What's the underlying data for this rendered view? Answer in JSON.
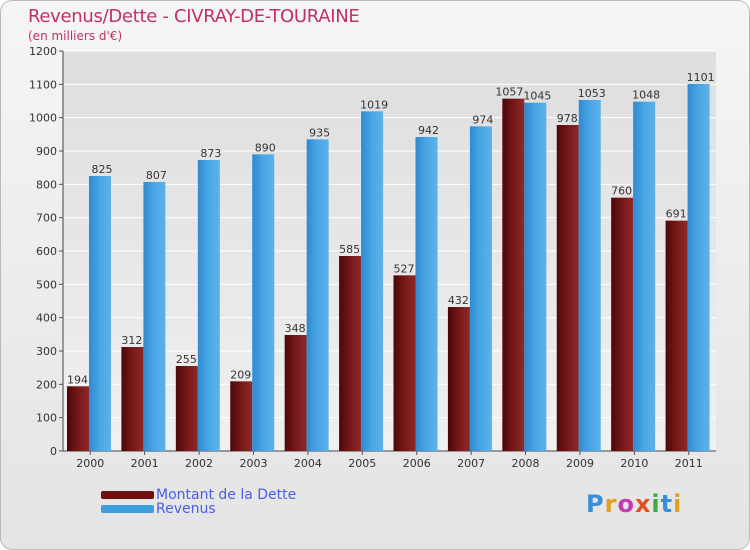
{
  "header": {
    "title": "Revenus/Dette - CIVRAY-DE-TOURAINE",
    "subtitle": "(en milliers d'€)"
  },
  "colors": {
    "title": "#c0306a",
    "dette": "#6e1010",
    "revenus": "#3f9ee0",
    "legend_text": "#4b5ee8"
  },
  "chart_data": {
    "type": "bar",
    "categories": [
      "2000",
      "2001",
      "2002",
      "2003",
      "2004",
      "2005",
      "2006",
      "2007",
      "2008",
      "2009",
      "2010",
      "2011"
    ],
    "series": [
      {
        "name": "Montant de la Dette",
        "values": [
          194,
          312,
          255,
          209,
          348,
          585,
          527,
          432,
          1057,
          978,
          760,
          691
        ]
      },
      {
        "name": "Revenus",
        "values": [
          825,
          807,
          873,
          890,
          935,
          1019,
          942,
          974,
          1045,
          1053,
          1048,
          1101
        ]
      }
    ],
    "ylim": [
      0,
      1200
    ],
    "yticks": [
      0,
      100,
      200,
      300,
      400,
      500,
      600,
      700,
      800,
      900,
      1000,
      1100,
      1200
    ],
    "grid": true,
    "legend": "bottom-left"
  },
  "legend": [
    {
      "label": "Montant de la Dette"
    },
    {
      "label": "Revenus"
    }
  ],
  "logo": {
    "letters": [
      "P",
      "r",
      "o",
      "x",
      "i",
      "t",
      "i"
    ]
  }
}
